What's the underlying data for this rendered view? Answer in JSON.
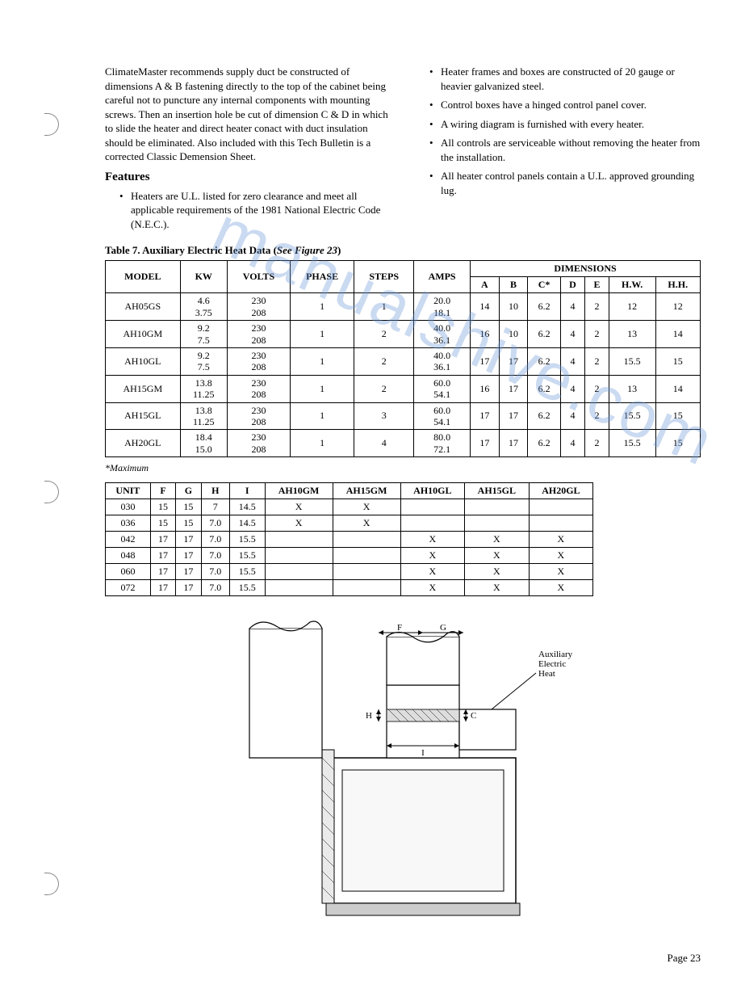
{
  "watermark_text": "manualshive.com",
  "intro_paragraph": "ClimateMaster recommends supply duct be constructed of dimensions A & B fastening directly to the top of the cabinet being careful not to puncture any internal components with mounting screws. Then an insertion hole be cut of dimension C & D in which to slide the heater and direct heater conact with duct insulation should be eliminated. Also included with this Tech Bulletin is a corrected Classic Demension Sheet.",
  "features_heading": "Features",
  "left_bullets": [
    "Heaters are U.L. listed for zero clearance and meet all applicable requirements of the 1981 National Electric Code (N.E.C.)."
  ],
  "right_bullets": [
    "Heater frames and boxes are constructed of 20 gauge or heavier galvanized steel.",
    "Control boxes have a hinged control panel cover.",
    "A wiring diagram is furnished with every heater.",
    "All controls are serviceable without removing the heater from the installation.",
    "All heater control panels contain a U.L. approved grounding lug."
  ],
  "table1_title_prefix": "Table 7. Auxiliary Electric Heat Data (",
  "table1_title_ref": "See Figure 23",
  "table1_title_suffix": ")",
  "table1": {
    "group_header": "DIMENSIONS",
    "cols": [
      "MODEL",
      "KW",
      "VOLTS",
      "PHASE",
      "STEPS",
      "AMPS",
      "A",
      "B",
      "C*",
      "D",
      "E",
      "H.W.",
      "H.H."
    ],
    "rows": [
      {
        "model": "AH05GS",
        "kw": [
          "4.6",
          "3.75"
        ],
        "volts": [
          "230",
          "208"
        ],
        "phase": "1",
        "steps": "1",
        "amps": [
          "20.0",
          "18.1"
        ],
        "a": "14",
        "b": "10",
        "c": "6.2",
        "d": "4",
        "e": "2",
        "hw": "12",
        "hh": "12"
      },
      {
        "model": "AH10GM",
        "kw": [
          "9.2",
          "7.5"
        ],
        "volts": [
          "230",
          "208"
        ],
        "phase": "1",
        "steps": "2",
        "amps": [
          "40.0",
          "36.1"
        ],
        "a": "16",
        "b": "10",
        "c": "6.2",
        "d": "4",
        "e": "2",
        "hw": "13",
        "hh": "14"
      },
      {
        "model": "AH10GL",
        "kw": [
          "9.2",
          "7.5"
        ],
        "volts": [
          "230",
          "208"
        ],
        "phase": "1",
        "steps": "2",
        "amps": [
          "40.0",
          "36.1"
        ],
        "a": "17",
        "b": "17",
        "c": "6.2",
        "d": "4",
        "e": "2",
        "hw": "15.5",
        "hh": "15"
      },
      {
        "model": "AH15GM",
        "kw": [
          "13.8",
          "11.25"
        ],
        "volts": [
          "230",
          "208"
        ],
        "phase": "1",
        "steps": "2",
        "amps": [
          "60.0",
          "54.1"
        ],
        "a": "16",
        "b": "17",
        "c": "6.2",
        "d": "4",
        "e": "2",
        "hw": "13",
        "hh": "14"
      },
      {
        "model": "AH15GL",
        "kw": [
          "13.8",
          "11.25"
        ],
        "volts": [
          "230",
          "208"
        ],
        "phase": "1",
        "steps": "3",
        "amps": [
          "60.0",
          "54.1"
        ],
        "a": "17",
        "b": "17",
        "c": "6.2",
        "d": "4",
        "e": "2",
        "hw": "15.5",
        "hh": "15"
      },
      {
        "model": "AH20GL",
        "kw": [
          "18.4",
          "15.0"
        ],
        "volts": [
          "230",
          "208"
        ],
        "phase": "1",
        "steps": "4",
        "amps": [
          "80.0",
          "72.1"
        ],
        "a": "17",
        "b": "17",
        "c": "6.2",
        "d": "4",
        "e": "2",
        "hw": "15.5",
        "hh": "15"
      }
    ]
  },
  "footnote": "*Maximum",
  "table2": {
    "cols": [
      "UNIT",
      "F",
      "G",
      "H",
      "I",
      "AH10GM",
      "AH15GM",
      "AH10GL",
      "AH15GL",
      "AH20GL"
    ],
    "rows": [
      [
        "030",
        "15",
        "15",
        "7",
        "14.5",
        "X",
        "X",
        "",
        "",
        ""
      ],
      [
        "036",
        "15",
        "15",
        "7.0",
        "14.5",
        "X",
        "X",
        "",
        "",
        ""
      ],
      [
        "042",
        "17",
        "17",
        "7.0",
        "15.5",
        "",
        "",
        "X",
        "X",
        "X"
      ],
      [
        "048",
        "17",
        "17",
        "7.0",
        "15.5",
        "",
        "",
        "X",
        "X",
        "X"
      ],
      [
        "060",
        "17",
        "17",
        "7.0",
        "15.5",
        "",
        "",
        "X",
        "X",
        "X"
      ],
      [
        "072",
        "17",
        "17",
        "7.0",
        "15.5",
        "",
        "",
        "X",
        "X",
        "X"
      ]
    ]
  },
  "diagram": {
    "label": "Auxiliary Electric Heat",
    "dim_labels": [
      "F",
      "G",
      "H",
      "I",
      "C"
    ]
  },
  "page_number": "Page 23"
}
